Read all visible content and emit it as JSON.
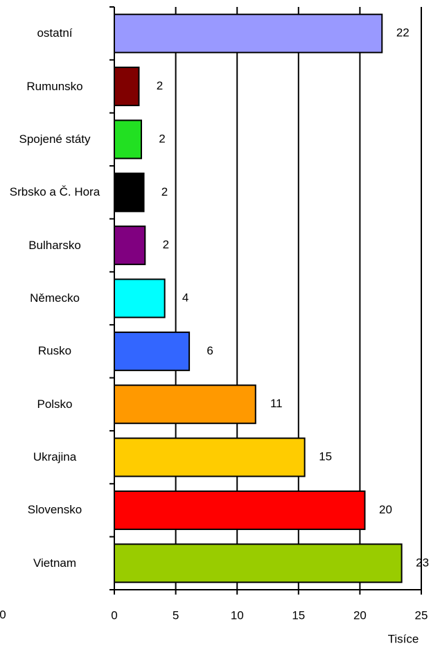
{
  "chart_data": {
    "type": "bar",
    "orientation": "horizontal",
    "categories": [
      "ostatní",
      "Rumunsko",
      "Spojené státy",
      "Srbsko a Č. Hora",
      "Bulharsko",
      "Německo",
      "Rusko",
      "Polsko",
      "Ukrajina",
      "Slovensko",
      "Vietnam"
    ],
    "values": [
      21.8,
      2.0,
      2.2,
      2.4,
      2.5,
      4.1,
      6.1,
      11.5,
      15.5,
      20.4,
      23.4
    ],
    "value_labels": [
      "22",
      "2",
      "2",
      "2",
      "2",
      "4",
      "6",
      "11",
      "15",
      "20",
      "23"
    ],
    "colors": [
      "#9999ff",
      "#800000",
      "#22e022",
      "#000000",
      "#800080",
      "#00ffff",
      "#3366ff",
      "#ff9900",
      "#ffcc00",
      "#ff0000",
      "#99cc00"
    ],
    "xlim": [
      0,
      25
    ],
    "xticks": [
      0,
      5,
      10,
      15,
      20,
      25
    ],
    "grid": true,
    "xlabel": "Tisíce",
    "annotations": [
      "0"
    ]
  }
}
